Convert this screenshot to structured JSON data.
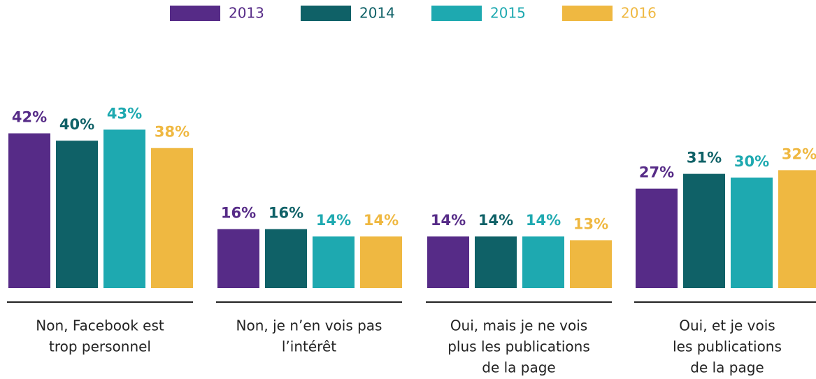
{
  "chart_data": {
    "type": "bar",
    "categories": [
      [
        "Non, Facebook est",
        "trop personnel"
      ],
      [
        "Non, je n’en vois pas",
        "l’intérêt"
      ],
      [
        "Oui, mais je ne vois",
        "plus les publications",
        "de la page"
      ],
      [
        "Oui, et je vois",
        "les publications",
        "de la page"
      ]
    ],
    "series": [
      {
        "name": "2013",
        "color": "#562b87",
        "values": [
          42,
          16,
          14,
          27
        ],
        "value_labels": [
          "42%",
          "16%",
          "14%",
          "27%"
        ]
      },
      {
        "name": "2014",
        "color": "#0f6167",
        "values": [
          40,
          16,
          14,
          31
        ],
        "value_labels": [
          "40%",
          "16%",
          "14%",
          "31%"
        ]
      },
      {
        "name": "2015",
        "color": "#1ea9b0",
        "values": [
          43,
          14,
          14,
          30
        ],
        "value_labels": [
          "43%",
          "14%",
          "14%",
          "30%"
        ]
      },
      {
        "name": "2016",
        "color": "#efb841",
        "values": [
          38,
          14,
          13,
          32
        ],
        "value_labels": [
          "38%",
          "14%",
          "13%",
          "32%"
        ]
      }
    ]
  }
}
